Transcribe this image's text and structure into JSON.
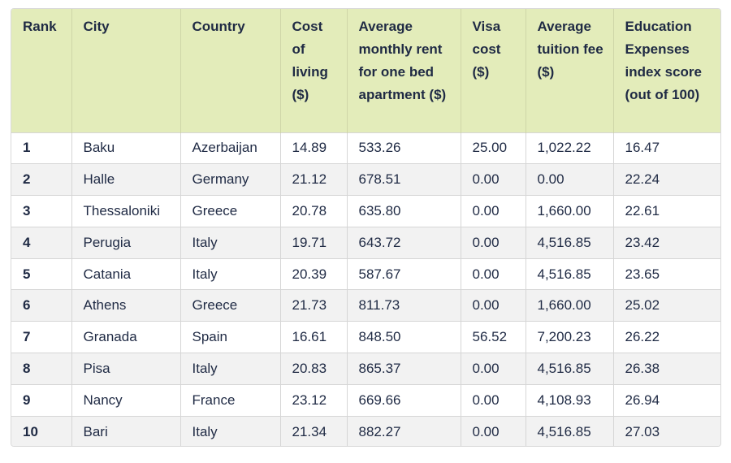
{
  "table": {
    "headers": [
      "Rank",
      "City",
      "Country",
      "Cost of living ($)",
      "Average monthly rent for one bed apartment ($)",
      "Visa cost ($)",
      "Average tuition fee ($)",
      "Education Expenses index score (out of 100)"
    ],
    "rows": [
      [
        "1",
        "Baku",
        "Azerbaijan",
        "14.89",
        "533.26",
        "25.00",
        "1,022.22",
        "16.47"
      ],
      [
        "2",
        "Halle",
        "Germany",
        "21.12",
        "678.51",
        "0.00",
        "0.00",
        "22.24"
      ],
      [
        "3",
        "Thessaloniki",
        "Greece",
        "20.78",
        "635.80",
        "0.00",
        "1,660.00",
        "22.61"
      ],
      [
        "4",
        "Perugia",
        "Italy",
        "19.71",
        "643.72",
        "0.00",
        "4,516.85",
        "23.42"
      ],
      [
        "5",
        "Catania",
        "Italy",
        "20.39",
        "587.67",
        "0.00",
        "4,516.85",
        "23.65"
      ],
      [
        "6",
        "Athens",
        "Greece",
        "21.73",
        "811.73",
        "0.00",
        "1,660.00",
        "25.02"
      ],
      [
        "7",
        "Granada",
        "Spain",
        "16.61",
        "848.50",
        "56.52",
        "7,200.23",
        "26.22"
      ],
      [
        "8",
        "Pisa",
        "Italy",
        "20.83",
        "865.37",
        "0.00",
        "4,516.85",
        "26.38"
      ],
      [
        "9",
        "Nancy",
        "France",
        "23.12",
        "669.66",
        "0.00",
        "4,108.93",
        "26.94"
      ],
      [
        "10",
        "Bari",
        "Italy",
        "21.34",
        "882.27",
        "0.00",
        "4,516.85",
        "27.03"
      ]
    ]
  },
  "colors": {
    "header_background": "#e3ecba",
    "row_alt_background": "#f2f2f2",
    "text": "#1f2a44"
  }
}
